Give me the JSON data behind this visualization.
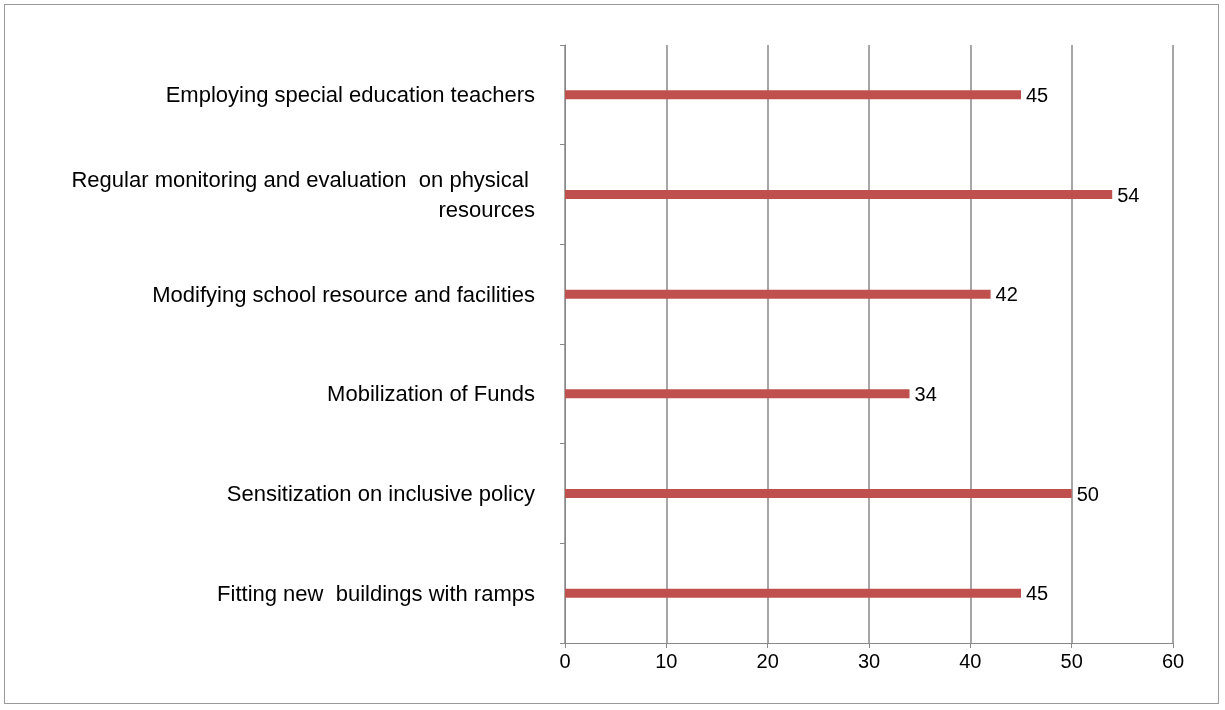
{
  "chart_data": {
    "type": "bar",
    "orientation": "horizontal",
    "categories": [
      "Employing special education teachers",
      "Regular monitoring and evaluation  on physical resources",
      "Modifying school resource and facilities",
      "Mobilization of Funds",
      "Sensitization on inclusive policy",
      "Fitting new  buildings with ramps"
    ],
    "values": [
      45,
      54,
      42,
      34,
      50,
      45
    ],
    "color": "#c0504d",
    "xlim": [
      0,
      60
    ],
    "xticks": [
      0,
      10,
      20,
      30,
      40,
      50,
      60
    ],
    "grid": "x",
    "data_labels": true
  }
}
